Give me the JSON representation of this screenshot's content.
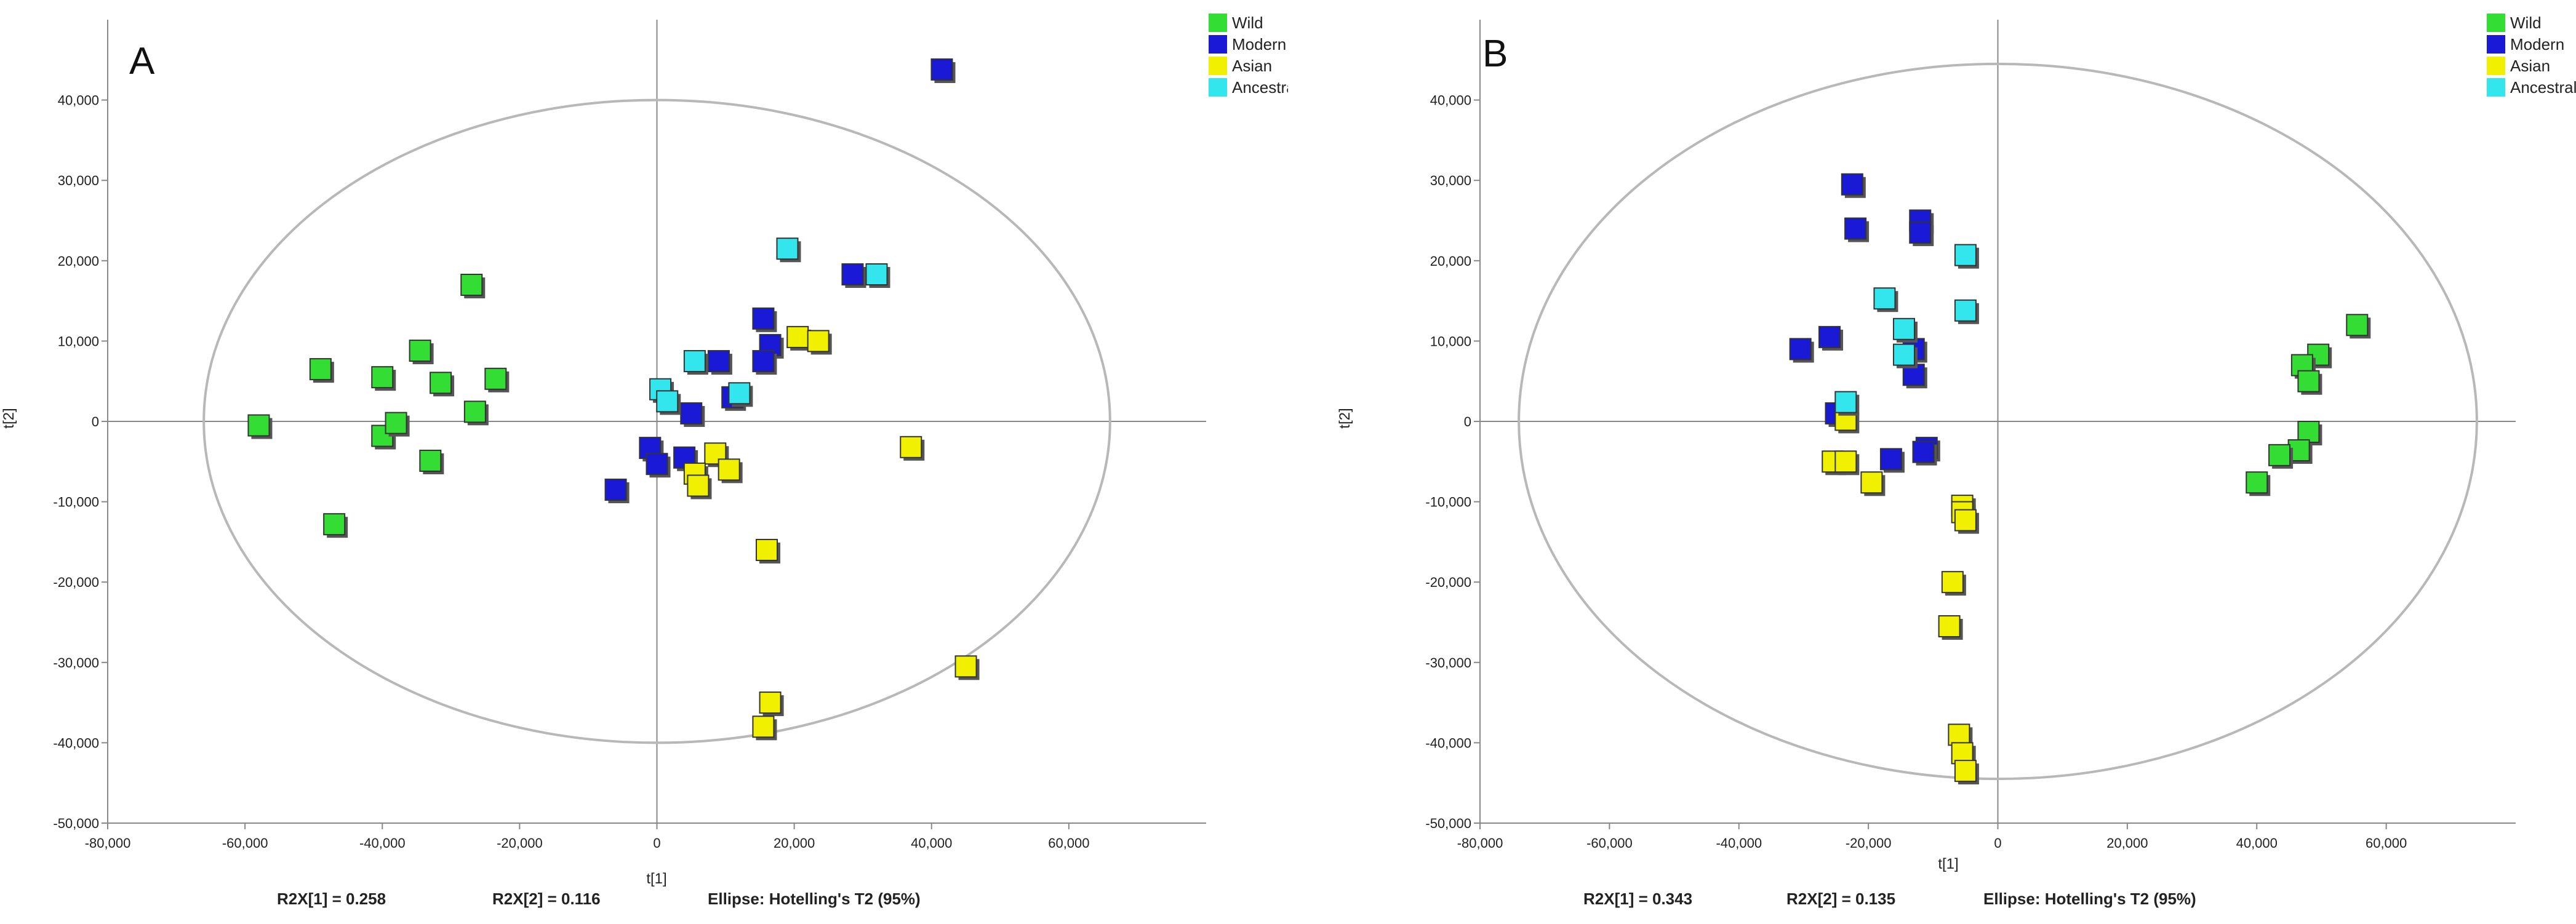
{
  "colors": {
    "Wild": "#33dd33",
    "Modern": "#1a1ad6",
    "Asian": "#f0f000",
    "Ancestral": "#33e6ee",
    "marker_edge": "#333333",
    "ellipse": "#b8b8b8",
    "axis": "#888888"
  },
  "chart_data": [
    {
      "type": "scatter",
      "panel_label": "A",
      "xlabel": "t[1]",
      "ylabel": "t[2]",
      "xlim": [
        -80000,
        80000
      ],
      "ylim": [
        -50000,
        50000
      ],
      "x_ticks": [
        "-80,000",
        "-60,000",
        "-40,000",
        "-20,000",
        "0",
        "20,000",
        "40,000",
        "60,000"
      ],
      "y_ticks": [
        "-50,000",
        "-40,000",
        "-30,000",
        "-20,000",
        "-10,000",
        "0",
        "10,000",
        "20,000",
        "30,000",
        "40,000"
      ],
      "ellipse": {
        "label": "Hotelling's T2 (95%)",
        "rx": 66000,
        "ry": 40000
      },
      "legend": [
        "Wild",
        "Modern",
        "Asian",
        "Ancestral"
      ],
      "footer": {
        "r2x1": "R2X[1] = 0.258",
        "r2x2": "R2X[2] = 0.116",
        "ellipse": "Ellipse: Hotelling's T2 (95%)"
      },
      "series": [
        {
          "name": "Wild",
          "x": [
            -58000,
            -49000,
            -40000,
            -34500,
            -31500,
            -27000,
            -23500,
            -40000,
            -38000,
            -26500,
            -33000,
            -47000
          ],
          "y": [
            -500,
            6500,
            5500,
            8800,
            4800,
            17000,
            5300,
            -1800,
            -200,
            1200,
            -4900,
            -12800
          ]
        },
        {
          "name": "Modern",
          "x": [
            41500,
            28500,
            15500,
            16500,
            15500,
            9000,
            11000,
            5000,
            -6000,
            -1000,
            0,
            4000
          ],
          "y": [
            43800,
            18300,
            12800,
            9500,
            7500,
            7500,
            3000,
            1000,
            -8500,
            -3300,
            -5300,
            -4500
          ]
        },
        {
          "name": "Asian",
          "x": [
            20500,
            23500,
            37000,
            8500,
            5500,
            6000,
            10500,
            16000,
            45000,
            16500,
            15500
          ],
          "y": [
            10500,
            10000,
            -3200,
            -4000,
            -6500,
            -8000,
            -6000,
            -16000,
            -30500,
            -35000,
            -38000
          ]
        },
        {
          "name": "Ancestral",
          "x": [
            19000,
            32000,
            5500,
            12000,
            500,
            1500
          ],
          "y": [
            21500,
            18300,
            7500,
            3500,
            4000,
            2500
          ]
        }
      ]
    },
    {
      "type": "scatter",
      "panel_label": "B",
      "xlabel": "t[1]",
      "ylabel": "t[2]",
      "xlim": [
        -80000,
        80000
      ],
      "ylim": [
        -50000,
        50000
      ],
      "x_ticks": [
        "-80,000",
        "-60,000",
        "-40,000",
        "-20,000",
        "0",
        "20,000",
        "40,000",
        "60,000"
      ],
      "y_ticks": [
        "-50,000",
        "-40,000",
        "-30,000",
        "-20,000",
        "-10,000",
        "0",
        "10,000",
        "20,000",
        "30,000",
        "40,000"
      ],
      "ellipse": {
        "label": "Hotelling's T2 (95%)",
        "rx": 74000,
        "ry": 44500
      },
      "legend": [
        "Wild",
        "Modern",
        "Asian",
        "Ancestral"
      ],
      "footer": {
        "r2x1": "R2X[1] = 0.343",
        "r2x2": "R2X[2] = 0.135",
        "ellipse": "Ellipse: Hotelling's T2 (95%)"
      },
      "series": [
        {
          "name": "Wild",
          "x": [
            55500,
            49500,
            47000,
            48000,
            48000,
            46500,
            43500,
            40000
          ],
          "y": [
            12000,
            8300,
            7000,
            5000,
            -1300,
            -3600,
            -4200,
            -7600
          ]
        },
        {
          "name": "Modern",
          "x": [
            -22500,
            -22000,
            -12000,
            -12000,
            -30500,
            -26000,
            -13000,
            -13000,
            -25000,
            -11000,
            -11500,
            -16500
          ],
          "y": [
            29500,
            24000,
            25000,
            23500,
            9000,
            10500,
            9000,
            5800,
            1000,
            -3300,
            -3800,
            -4700
          ]
        },
        {
          "name": "Asian",
          "x": [
            -23500,
            -25500,
            -23500,
            -19500,
            -5500,
            -5500,
            -5000,
            -7000,
            -7500,
            -6000,
            -5500,
            -5000
          ],
          "y": [
            200,
            -5000,
            -5000,
            -7600,
            -10500,
            -11300,
            -12300,
            -20000,
            -25500,
            -39000,
            -41300,
            -43500
          ]
        },
        {
          "name": "Ancestral",
          "x": [
            -5000,
            -5000,
            -17500,
            -14500,
            -14500,
            -23500
          ],
          "y": [
            20700,
            13800,
            15300,
            11500,
            8300,
            2400
          ]
        }
      ]
    }
  ]
}
